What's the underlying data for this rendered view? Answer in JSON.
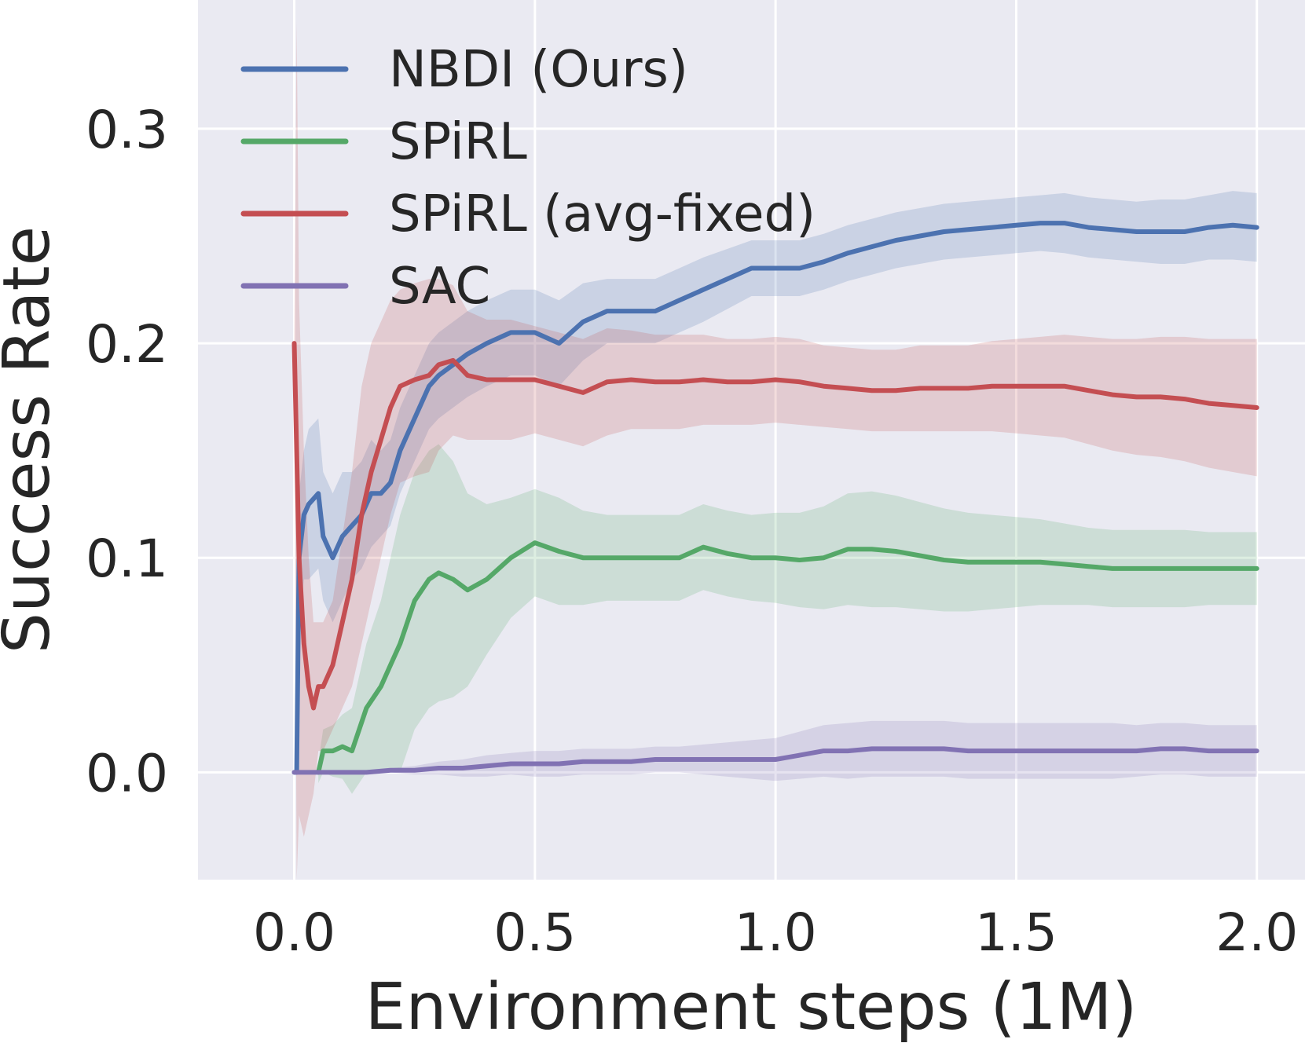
{
  "chart_data": {
    "type": "line",
    "xlabel": "Environment steps (1M)",
    "ylabel": "Success Rate",
    "xlim": [
      -0.2,
      2.1
    ],
    "ylim": [
      -0.05,
      0.36
    ],
    "xticks": [
      0.0,
      0.5,
      1.0,
      1.5,
      2.0
    ],
    "xtick_labels": [
      "0.0",
      "0.5",
      "1.0",
      "1.5",
      "2.0"
    ],
    "yticks": [
      0.0,
      0.1,
      0.2,
      0.3
    ],
    "ytick_labels": [
      "0.0",
      "0.1",
      "0.2",
      "0.3"
    ],
    "grid": true,
    "background": "#eaeaf2",
    "legend": "top-left",
    "series": [
      {
        "name": "NBDI (Ours)",
        "color": "#4c72b0",
        "x": [
          0.0,
          0.005,
          0.01,
          0.02,
          0.03,
          0.05,
          0.06,
          0.08,
          0.1,
          0.12,
          0.14,
          0.16,
          0.18,
          0.2,
          0.22,
          0.25,
          0.28,
          0.3,
          0.33,
          0.36,
          0.4,
          0.45,
          0.5,
          0.55,
          0.6,
          0.65,
          0.7,
          0.75,
          0.8,
          0.85,
          0.9,
          0.95,
          1.0,
          1.05,
          1.1,
          1.15,
          1.2,
          1.25,
          1.3,
          1.35,
          1.4,
          1.45,
          1.5,
          1.55,
          1.6,
          1.65,
          1.7,
          1.75,
          1.8,
          1.85,
          1.9,
          1.95,
          2.0
        ],
        "y": [
          0.0,
          0.0,
          0.1,
          0.12,
          0.125,
          0.13,
          0.11,
          0.1,
          0.11,
          0.115,
          0.12,
          0.13,
          0.13,
          0.135,
          0.15,
          0.165,
          0.18,
          0.185,
          0.19,
          0.195,
          0.2,
          0.205,
          0.205,
          0.2,
          0.21,
          0.215,
          0.215,
          0.215,
          0.22,
          0.225,
          0.23,
          0.235,
          0.235,
          0.235,
          0.238,
          0.242,
          0.245,
          0.248,
          0.25,
          0.252,
          0.253,
          0.254,
          0.255,
          0.256,
          0.256,
          0.254,
          0.253,
          0.252,
          0.252,
          0.252,
          0.254,
          0.255,
          0.254
        ],
        "band_halfwidth": [
          0,
          0,
          0.03,
          0.03,
          0.035,
          0.035,
          0.03,
          0.03,
          0.03,
          0.025,
          0.025,
          0.025,
          0.02,
          0.02,
          0.02,
          0.02,
          0.02,
          0.02,
          0.02,
          0.02,
          0.02,
          0.02,
          0.02,
          0.02,
          0.018,
          0.015,
          0.015,
          0.015,
          0.015,
          0.015,
          0.014,
          0.013,
          0.013,
          0.013,
          0.013,
          0.013,
          0.013,
          0.013,
          0.013,
          0.013,
          0.013,
          0.013,
          0.013,
          0.013,
          0.014,
          0.014,
          0.014,
          0.014,
          0.015,
          0.015,
          0.015,
          0.016,
          0.016
        ]
      },
      {
        "name": "SPiRL",
        "color": "#55a868",
        "x": [
          0.05,
          0.06,
          0.08,
          0.1,
          0.12,
          0.15,
          0.18,
          0.2,
          0.22,
          0.25,
          0.28,
          0.3,
          0.33,
          0.36,
          0.4,
          0.45,
          0.5,
          0.55,
          0.6,
          0.65,
          0.7,
          0.75,
          0.8,
          0.85,
          0.9,
          0.95,
          1.0,
          1.05,
          1.1,
          1.15,
          1.2,
          1.25,
          1.3,
          1.35,
          1.4,
          1.45,
          1.5,
          1.55,
          1.6,
          1.65,
          1.7,
          1.75,
          1.8,
          1.85,
          1.9,
          1.95,
          2.0
        ],
        "y": [
          0.0,
          0.01,
          0.01,
          0.012,
          0.01,
          0.03,
          0.04,
          0.05,
          0.06,
          0.08,
          0.09,
          0.093,
          0.09,
          0.085,
          0.09,
          0.1,
          0.107,
          0.103,
          0.1,
          0.1,
          0.1,
          0.1,
          0.1,
          0.105,
          0.102,
          0.1,
          0.1,
          0.099,
          0.1,
          0.104,
          0.104,
          0.103,
          0.101,
          0.099,
          0.098,
          0.098,
          0.098,
          0.098,
          0.097,
          0.096,
          0.095,
          0.095,
          0.095,
          0.095,
          0.095,
          0.095,
          0.095
        ],
        "band_halfwidth": [
          0.005,
          0.01,
          0.012,
          0.015,
          0.02,
          0.03,
          0.04,
          0.05,
          0.06,
          0.06,
          0.06,
          0.06,
          0.055,
          0.045,
          0.035,
          0.028,
          0.025,
          0.025,
          0.022,
          0.02,
          0.02,
          0.02,
          0.02,
          0.02,
          0.02,
          0.02,
          0.021,
          0.022,
          0.024,
          0.026,
          0.027,
          0.026,
          0.025,
          0.024,
          0.023,
          0.022,
          0.021,
          0.02,
          0.019,
          0.018,
          0.018,
          0.018,
          0.018,
          0.018,
          0.017,
          0.017,
          0.017
        ]
      },
      {
        "name": "SPiRL (avg-fixed)",
        "color": "#c44e52",
        "x": [
          0.0,
          0.005,
          0.01,
          0.02,
          0.03,
          0.04,
          0.05,
          0.06,
          0.08,
          0.1,
          0.12,
          0.14,
          0.16,
          0.18,
          0.2,
          0.22,
          0.25,
          0.28,
          0.3,
          0.33,
          0.36,
          0.4,
          0.45,
          0.5,
          0.55,
          0.6,
          0.65,
          0.7,
          0.75,
          0.8,
          0.85,
          0.9,
          0.95,
          1.0,
          1.05,
          1.1,
          1.15,
          1.2,
          1.25,
          1.3,
          1.35,
          1.4,
          1.45,
          1.5,
          1.55,
          1.6,
          1.65,
          1.7,
          1.75,
          1.8,
          1.85,
          1.9,
          1.95,
          2.0
        ],
        "y": [
          0.2,
          0.15,
          0.1,
          0.06,
          0.04,
          0.03,
          0.04,
          0.04,
          0.05,
          0.07,
          0.09,
          0.12,
          0.14,
          0.155,
          0.17,
          0.18,
          0.183,
          0.185,
          0.19,
          0.192,
          0.185,
          0.183,
          0.183,
          0.183,
          0.18,
          0.177,
          0.182,
          0.183,
          0.182,
          0.182,
          0.183,
          0.182,
          0.182,
          0.183,
          0.182,
          0.18,
          0.179,
          0.178,
          0.178,
          0.179,
          0.179,
          0.179,
          0.18,
          0.18,
          0.18,
          0.18,
          0.178,
          0.176,
          0.175,
          0.175,
          0.174,
          0.172,
          0.171,
          0.17
        ],
        "band_halfwidth": [
          0,
          0.2,
          0.12,
          0.09,
          0.06,
          0.04,
          0.03,
          0.03,
          0.03,
          0.04,
          0.05,
          0.06,
          0.06,
          0.055,
          0.05,
          0.045,
          0.045,
          0.045,
          0.04,
          0.035,
          0.03,
          0.028,
          0.028,
          0.025,
          0.025,
          0.025,
          0.025,
          0.023,
          0.022,
          0.022,
          0.021,
          0.02,
          0.02,
          0.02,
          0.02,
          0.019,
          0.019,
          0.019,
          0.019,
          0.02,
          0.02,
          0.02,
          0.021,
          0.022,
          0.023,
          0.024,
          0.025,
          0.026,
          0.027,
          0.028,
          0.029,
          0.03,
          0.031,
          0.032
        ]
      },
      {
        "name": "SAC",
        "color": "#8172b3",
        "x": [
          0.0,
          0.05,
          0.1,
          0.15,
          0.2,
          0.25,
          0.3,
          0.35,
          0.4,
          0.45,
          0.5,
          0.55,
          0.6,
          0.65,
          0.7,
          0.75,
          0.8,
          0.85,
          0.9,
          0.95,
          1.0,
          1.05,
          1.1,
          1.15,
          1.2,
          1.25,
          1.3,
          1.35,
          1.4,
          1.45,
          1.5,
          1.55,
          1.6,
          1.65,
          1.7,
          1.75,
          1.8,
          1.85,
          1.9,
          1.95,
          2.0
        ],
        "y": [
          0.0,
          0.0,
          0.0,
          0.0,
          0.001,
          0.001,
          0.002,
          0.002,
          0.003,
          0.004,
          0.004,
          0.004,
          0.005,
          0.005,
          0.005,
          0.006,
          0.006,
          0.006,
          0.006,
          0.006,
          0.006,
          0.008,
          0.01,
          0.01,
          0.011,
          0.011,
          0.011,
          0.011,
          0.01,
          0.01,
          0.01,
          0.01,
          0.01,
          0.01,
          0.01,
          0.01,
          0.011,
          0.011,
          0.01,
          0.01,
          0.01
        ],
        "band_halfwidth": [
          0,
          0,
          0,
          0,
          0.001,
          0.002,
          0.003,
          0.004,
          0.005,
          0.005,
          0.006,
          0.006,
          0.006,
          0.006,
          0.006,
          0.006,
          0.006,
          0.007,
          0.008,
          0.009,
          0.01,
          0.011,
          0.012,
          0.013,
          0.013,
          0.013,
          0.013,
          0.013,
          0.013,
          0.013,
          0.013,
          0.013,
          0.013,
          0.013,
          0.013,
          0.012,
          0.012,
          0.012,
          0.012,
          0.012,
          0.012
        ]
      }
    ]
  }
}
